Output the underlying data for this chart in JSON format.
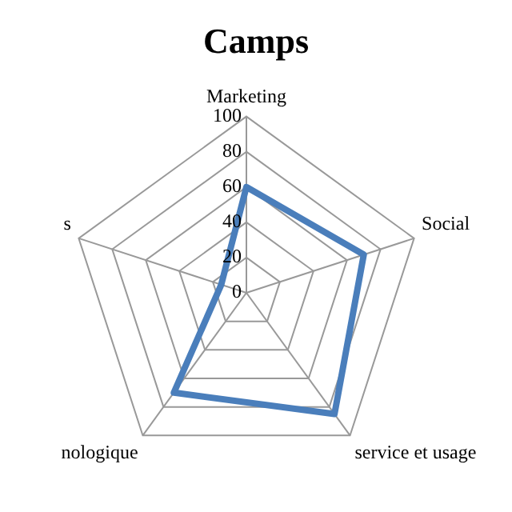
{
  "chart_data": {
    "type": "radar",
    "title": "Camps",
    "categories": [
      "Marketing",
      "Social",
      "service et usage",
      "nologique",
      "s"
    ],
    "series": [
      {
        "color": "#4a7ebb",
        "values": [
          60,
          70,
          85,
          70,
          15
        ]
      }
    ],
    "ylim": [
      0,
      100
    ],
    "yticks": [
      0,
      20,
      40,
      60,
      80,
      100
    ],
    "grid": true,
    "legend": false,
    "marker": "none"
  }
}
